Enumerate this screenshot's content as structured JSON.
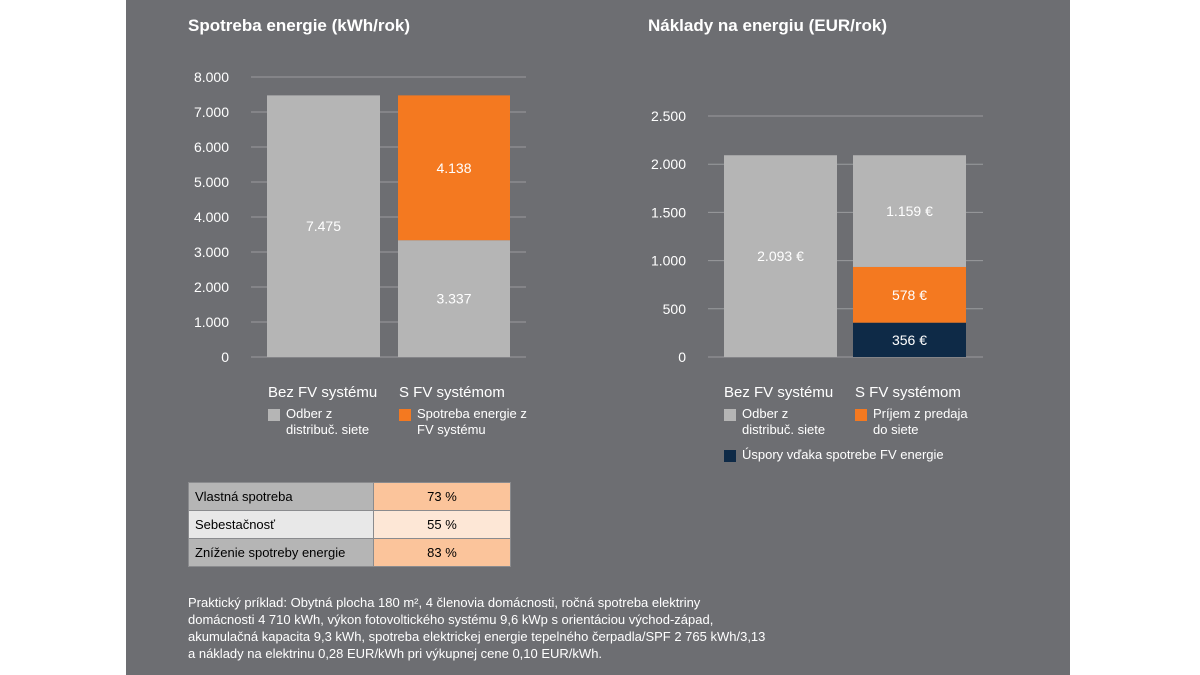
{
  "chart_data": [
    {
      "type": "bar",
      "stacked": true,
      "title": "Spotreba energie (kWh/rok)",
      "categories": [
        "Bez FV systému",
        "S FV systémom"
      ],
      "ylim": [
        0,
        8000
      ],
      "yticks": [
        0,
        1000,
        2000,
        3000,
        4000,
        5000,
        6000,
        7000,
        8000
      ],
      "ytick_labels": [
        "0",
        "1.000",
        "2.000",
        "3.000",
        "4.000",
        "5.000",
        "6.000",
        "7.000",
        "8.000"
      ],
      "bars": [
        {
          "category": "Bez FV systému",
          "segments": [
            {
              "series": "grid",
              "value": 7475,
              "label": "7.475"
            }
          ]
        },
        {
          "category": "S FV systémom",
          "segments": [
            {
              "series": "grid",
              "value": 3337,
              "label": "3.337"
            },
            {
              "series": "pv",
              "value": 4138,
              "label": "4.138"
            }
          ]
        }
      ],
      "legend": [
        {
          "key": "grid",
          "label": "Odber z distribuč. siete",
          "color": "#b5b5b5"
        },
        {
          "key": "pv",
          "label": "Spotreba energie z FV systému",
          "color": "#f47920"
        }
      ]
    },
    {
      "type": "bar",
      "stacked": true,
      "title": "Náklady na energiu (EUR/rok)",
      "categories": [
        "Bez FV systému",
        "S FV systémom"
      ],
      "ylim": [
        0,
        2500
      ],
      "yticks": [
        0,
        500,
        1000,
        1500,
        2000,
        2500
      ],
      "ytick_labels": [
        "0",
        "500",
        "1.000",
        "1.500",
        "2.000",
        "2.500"
      ],
      "bars": [
        {
          "category": "Bez FV systému",
          "segments": [
            {
              "series": "grid",
              "value": 2093,
              "label": "2.093 €"
            }
          ]
        },
        {
          "category": "S FV systémom",
          "segments": [
            {
              "series": "savings",
              "value": 356,
              "label": "356 €"
            },
            {
              "series": "feedin",
              "value": 578,
              "label": "578 €"
            },
            {
              "series": "grid",
              "value": 1159,
              "label": "1.159 €"
            }
          ]
        }
      ],
      "legend": [
        {
          "key": "grid",
          "label": "Odber z distribuč. siete",
          "color": "#b5b5b5"
        },
        {
          "key": "feedin",
          "label": "Príjem z predaja do siete",
          "color": "#f47920"
        },
        {
          "key": "savings",
          "label": "Úspory vďaka spotrebe FV energie",
          "color": "#0e2a47"
        }
      ]
    }
  ],
  "kpi_table": [
    {
      "label": "Vlastná spotreba",
      "value": "73 %",
      "label_bg": "#b5b5b5",
      "value_bg": "#fbc49b"
    },
    {
      "label": "Sebestačnosť",
      "value": "55 %",
      "label_bg": "#e8e8e8",
      "value_bg": "#fde7d6"
    },
    {
      "label": "Zníženie spotreby energie",
      "value": "83 %",
      "label_bg": "#b5b5b5",
      "value_bg": "#fbc49b"
    }
  ],
  "note": {
    "lines": [
      "Praktický príklad: Obytná plocha 180 m², 4 členovia domácnosti, ročná spotreba elektriny",
      "domácnosti 4 710 kWh, výkon fotovoltického systému 9,6 kWp s orientáciou východ-západ,",
      "akumulačná kapacita 9,3 kWh, spotreba elektrickej energie tepelného čerpadla/SPF 2 765 kWh/3,13",
      "a náklady na elektrinu 0,28 EUR/kWh pri výkupnej cene 0,10 EUR/kWh."
    ]
  }
}
